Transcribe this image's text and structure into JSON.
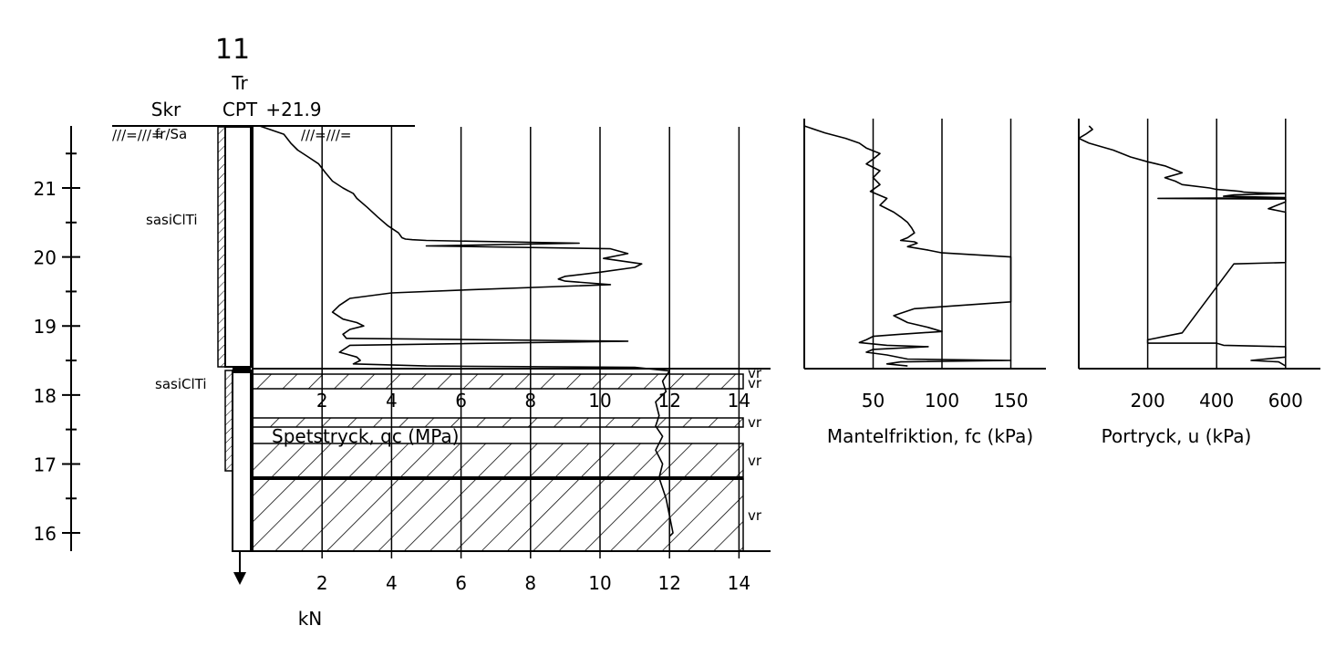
{
  "chart_data": [
    {
      "type": "line",
      "header": {
        "number": "11",
        "method_line1": "Tr",
        "method_line2": "CPT",
        "elevation": "+21.9",
        "left_col": "Skr"
      },
      "y_ticks": [
        "21",
        "20",
        "19",
        "18",
        "17",
        "16"
      ],
      "y_label": "",
      "soil_labels": [
        "fr/Sa",
        "sasiClTi",
        "sasiClTi"
      ],
      "layer_labels": [
        "vr",
        "vr",
        "vr",
        "vr",
        "vr"
      ],
      "xlabel": "Spetstryck, qc (MPa)",
      "x_ticks": [
        "2",
        "4",
        "6",
        "8",
        "10",
        "12",
        "14"
      ],
      "ylim": [
        15.75,
        21.9
      ],
      "xlim": [
        0,
        14
      ],
      "series": [
        {
          "x": [
            0.2,
            0.9,
            1.1,
            1.3,
            1.6,
            1.9,
            2.1,
            2.3,
            2.6,
            2.9,
            3.0,
            3.3,
            3.6,
            3.9,
            4.2,
            4.3,
            4.4,
            4.6,
            5.0,
            9.4,
            5.0,
            10.3,
            10.8,
            10.1,
            11.2,
            11.0,
            10.0,
            9.0,
            8.8,
            9.0,
            10.3,
            6.0,
            4.0,
            2.8,
            2.5,
            2.3,
            2.6,
            3.0,
            3.2,
            2.8,
            2.6,
            2.7,
            10.8,
            2.8,
            2.5,
            3.0,
            3.1,
            2.9,
            5.0,
            11.0,
            12.0,
            11.8,
            11.9,
            11.6,
            11.7,
            11.6,
            11.8,
            11.6,
            11.8,
            11.7,
            11.9,
            12.0,
            12.1,
            12.0
          ],
          "y": [
            21.9,
            21.78,
            21.65,
            21.55,
            21.45,
            21.35,
            21.22,
            21.1,
            21.0,
            20.92,
            20.85,
            20.72,
            20.58,
            20.45,
            20.35,
            20.28,
            20.26,
            20.25,
            20.24,
            20.2,
            20.16,
            20.12,
            20.05,
            19.98,
            19.9,
            19.85,
            19.78,
            19.72,
            19.68,
            19.65,
            19.6,
            19.52,
            19.48,
            19.4,
            19.3,
            19.2,
            19.1,
            19.05,
            19.0,
            18.95,
            18.88,
            18.82,
            18.78,
            18.72,
            18.62,
            18.55,
            18.5,
            18.45,
            18.42,
            18.4,
            18.35,
            18.2,
            18.05,
            17.9,
            17.7,
            17.55,
            17.4,
            17.2,
            17.0,
            16.8,
            16.5,
            16.25,
            16.0,
            15.95
          ]
        }
      ]
    },
    {
      "type": "line",
      "xlabel": "Mantelfriktion, fc (kPa)",
      "x_ticks": [
        "50",
        "100",
        "150"
      ],
      "xlim": [
        0,
        175
      ],
      "series": [
        {
          "x": [
            0,
            15,
            30,
            40,
            45,
            55,
            50,
            45,
            55,
            50,
            55,
            48,
            60,
            55,
            65,
            70,
            75,
            78,
            80,
            75,
            70,
            80,
            82,
            75,
            90,
            100,
            150,
            150,
            80,
            65,
            75,
            90,
            100,
            70,
            50,
            45,
            40,
            60,
            90,
            50,
            45,
            60,
            75,
            150,
            70,
            60,
            75
          ],
          "y": [
            21.9,
            21.8,
            21.72,
            21.65,
            21.58,
            21.5,
            21.42,
            21.35,
            21.25,
            21.15,
            21.05,
            20.95,
            20.85,
            20.75,
            20.65,
            20.58,
            20.5,
            20.42,
            20.35,
            20.28,
            20.24,
            20.22,
            20.2,
            20.15,
            20.1,
            20.06,
            20.0,
            19.35,
            19.25,
            19.15,
            19.05,
            18.98,
            18.92,
            18.88,
            18.85,
            18.8,
            18.76,
            18.72,
            18.7,
            18.66,
            18.62,
            18.58,
            18.52,
            18.5,
            18.48,
            18.45,
            18.42
          ]
        }
      ]
    },
    {
      "type": "line",
      "xlabel": "Portryck, u (kPa)",
      "x_ticks": [
        "200",
        "400",
        "600"
      ],
      "xlim": [
        0,
        700
      ],
      "series": [
        {
          "x": [
            30,
            40,
            20,
            0,
            30,
            100,
            150,
            200,
            250,
            300,
            250,
            280,
            300,
            380,
            400,
            450,
            470,
            480,
            520,
            600,
            450,
            420,
            600,
            230,
            600,
            600,
            550,
            600,
            600,
            600,
            600,
            600,
            450,
            300,
            200,
            200,
            400,
            420,
            600,
            600,
            600,
            500,
            580,
            600
          ],
          "y": [
            21.9,
            21.85,
            21.78,
            21.72,
            21.65,
            21.55,
            21.45,
            21.38,
            21.32,
            21.22,
            21.15,
            21.1,
            21.05,
            21.0,
            20.98,
            20.96,
            20.95,
            20.94,
            20.93,
            20.92,
            20.9,
            20.88,
            20.86,
            20.85,
            20.84,
            20.8,
            20.7,
            20.65,
            20.24,
            20.22,
            19.94,
            19.92,
            19.9,
            18.9,
            18.8,
            18.75,
            18.75,
            18.72,
            18.7,
            18.65,
            18.55,
            18.5,
            18.48,
            18.42
          ]
        }
      ]
    }
  ],
  "force_axis": {
    "x_ticks": [
      "2",
      "4",
      "6",
      "8",
      "10",
      "12",
      "14"
    ],
    "unit": "kN"
  },
  "colors": {
    "line": "#000000",
    "background": "#ffffff"
  }
}
